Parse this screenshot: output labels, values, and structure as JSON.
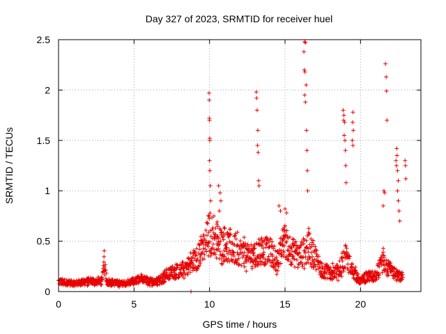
{
  "chart_data": {
    "type": "scatter",
    "title": "Day 327 of 2023, SRMTID for receiver huel",
    "xlabel": "GPS time / hours",
    "ylabel": "SRMTID / TECUs",
    "xlim": [
      0,
      24
    ],
    "ylim": [
      0,
      2.5
    ],
    "xticks": [
      0,
      5,
      10,
      15,
      20
    ],
    "xtick_labels": [
      "0",
      "5",
      "10",
      "15",
      "20"
    ],
    "yticks": [
      0,
      0.5,
      1,
      1.5,
      2,
      2.5
    ],
    "ytick_labels": [
      "0",
      "0.5",
      "1",
      "1.5",
      "2",
      "2.5"
    ],
    "grid": true,
    "marker": "+",
    "series": [
      {
        "name": "SRMTID",
        "color": "#e60000",
        "baseline": [
          [
            0.0,
            0.1
          ],
          [
            1.0,
            0.08
          ],
          [
            2.0,
            0.1
          ],
          [
            2.9,
            0.1
          ],
          [
            3.0,
            0.3
          ],
          [
            3.2,
            0.1
          ],
          [
            4.0,
            0.08
          ],
          [
            5.0,
            0.1
          ],
          [
            5.5,
            0.12
          ],
          [
            6.0,
            0.1
          ],
          [
            6.5,
            0.1
          ],
          [
            7.0,
            0.15
          ],
          [
            7.5,
            0.2
          ],
          [
            8.0,
            0.2
          ],
          [
            8.5,
            0.25
          ],
          [
            9.0,
            0.3
          ],
          [
            9.5,
            0.4
          ],
          [
            10.0,
            0.6
          ],
          [
            10.5,
            0.5
          ],
          [
            11.0,
            0.45
          ],
          [
            11.5,
            0.42
          ],
          [
            12.0,
            0.4
          ],
          [
            12.5,
            0.35
          ],
          [
            13.0,
            0.35
          ],
          [
            13.5,
            0.4
          ],
          [
            14.0,
            0.4
          ],
          [
            14.5,
            0.3
          ],
          [
            15.0,
            0.5
          ],
          [
            15.5,
            0.4
          ],
          [
            16.0,
            0.35
          ],
          [
            16.5,
            0.45
          ],
          [
            17.0,
            0.35
          ],
          [
            17.5,
            0.2
          ],
          [
            18.0,
            0.2
          ],
          [
            18.5,
            0.2
          ],
          [
            19.0,
            0.35
          ],
          [
            19.5,
            0.2
          ],
          [
            20.0,
            0.1
          ],
          [
            20.5,
            0.15
          ],
          [
            21.0,
            0.15
          ],
          [
            21.5,
            0.3
          ],
          [
            22.0,
            0.2
          ],
          [
            22.5,
            0.15
          ],
          [
            22.8,
            0.15
          ]
        ],
        "outliers": [
          [
            9.97,
            1.97
          ],
          [
            9.98,
            1.9
          ],
          [
            9.99,
            1.72
          ],
          [
            10.0,
            1.7
          ],
          [
            10.01,
            1.52
          ],
          [
            10.02,
            1.5
          ],
          [
            10.0,
            1.3
          ],
          [
            10.02,
            1.2
          ],
          [
            10.05,
            1.05
          ],
          [
            10.08,
            0.9
          ],
          [
            13.1,
            1.98
          ],
          [
            13.12,
            1.92
          ],
          [
            13.15,
            1.8
          ],
          [
            13.2,
            1.6
          ],
          [
            13.18,
            1.45
          ],
          [
            13.22,
            1.38
          ],
          [
            13.25,
            1.1
          ],
          [
            13.28,
            1.05
          ],
          [
            16.3,
            2.48
          ],
          [
            16.35,
            2.47
          ],
          [
            16.25,
            2.38
          ],
          [
            16.28,
            2.2
          ],
          [
            16.32,
            2.18
          ],
          [
            16.4,
            2.05
          ],
          [
            16.3,
            1.95
          ],
          [
            16.35,
            1.88
          ],
          [
            16.42,
            1.6
          ],
          [
            16.45,
            1.4
          ],
          [
            16.48,
            1.2
          ],
          [
            16.5,
            1.0
          ],
          [
            18.85,
            1.8
          ],
          [
            18.9,
            1.75
          ],
          [
            18.88,
            1.7
          ],
          [
            18.95,
            1.68
          ],
          [
            18.92,
            1.55
          ],
          [
            18.97,
            1.5
          ],
          [
            19.0,
            1.4
          ],
          [
            19.02,
            1.25
          ],
          [
            19.05,
            1.08
          ],
          [
            19.5,
            1.78
          ],
          [
            19.48,
            1.68
          ],
          [
            19.52,
            1.6
          ],
          [
            19.45,
            1.5
          ],
          [
            19.5,
            1.45
          ],
          [
            21.65,
            2.26
          ],
          [
            21.7,
            2.13
          ],
          [
            21.72,
            1.99
          ],
          [
            21.75,
            1.7
          ],
          [
            21.5,
            0.85
          ],
          [
            21.55,
            1.0
          ],
          [
            21.6,
            0.98
          ],
          [
            22.4,
            1.42
          ],
          [
            22.42,
            1.35
          ],
          [
            22.35,
            1.3
          ],
          [
            22.38,
            1.25
          ],
          [
            22.45,
            1.2
          ],
          [
            22.5,
            1.1
          ],
          [
            22.45,
            1.0
          ],
          [
            22.5,
            0.9
          ],
          [
            22.55,
            0.8
          ],
          [
            22.6,
            0.7
          ],
          [
            22.95,
            1.3
          ],
          [
            22.98,
            1.25
          ],
          [
            23.0,
            1.12
          ],
          [
            10.6,
            1.05
          ],
          [
            10.7,
            0.98
          ],
          [
            10.75,
            0.9
          ],
          [
            10.65,
            0.8
          ],
          [
            14.6,
            0.85
          ],
          [
            14.7,
            0.8
          ],
          [
            15.0,
            0.82
          ],
          [
            15.1,
            0.78
          ],
          [
            8.77,
            0.0
          ]
        ]
      }
    ]
  }
}
